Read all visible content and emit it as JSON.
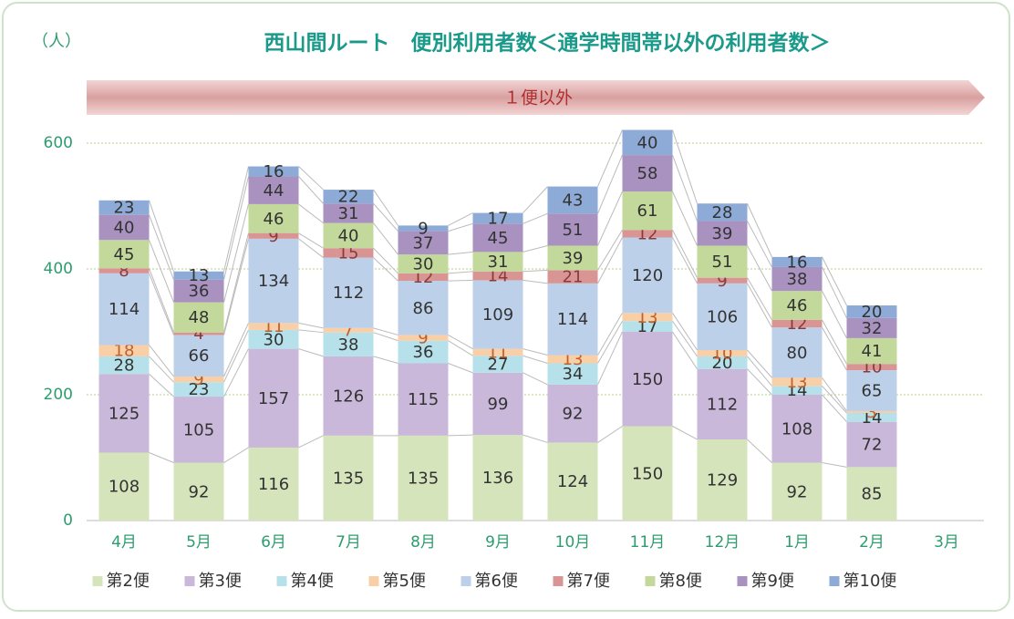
{
  "chart_data": {
    "type": "stacked_bar",
    "title": "西山間ルート　便別利用者数＜通学時間帯以外の利用者数＞",
    "y_label": "（人）",
    "banner": "１便以外",
    "categories": [
      "4月",
      "5月",
      "6月",
      "7月",
      "8月",
      "9月",
      "10月",
      "11月",
      "12月",
      "1月",
      "2月",
      "3月"
    ],
    "series": [
      {
        "name": "第2便",
        "color": "#d6e4bc",
        "values": [
          108,
          92,
          116,
          135,
          135,
          136,
          124,
          150,
          129,
          92,
          85,
          null
        ]
      },
      {
        "name": "第3便",
        "color": "#c9b8d9",
        "values": [
          125,
          105,
          157,
          126,
          115,
          99,
          92,
          150,
          112,
          108,
          72,
          null
        ]
      },
      {
        "name": "第4便",
        "color": "#b7e1ea",
        "values": [
          28,
          23,
          30,
          38,
          36,
          27,
          34,
          17,
          20,
          14,
          14,
          null
        ]
      },
      {
        "name": "第5便",
        "color": "#f9cfa8",
        "values": [
          18,
          9,
          11,
          7,
          9,
          11,
          13,
          13,
          10,
          13,
          3,
          null
        ]
      },
      {
        "name": "第6便",
        "color": "#bcd0ea",
        "values": [
          114,
          66,
          134,
          112,
          86,
          109,
          114,
          120,
          106,
          80,
          65,
          null
        ]
      },
      {
        "name": "第7便",
        "color": "#d99594",
        "values": [
          8,
          4,
          9,
          15,
          12,
          14,
          21,
          12,
          9,
          12,
          10,
          null
        ]
      },
      {
        "name": "第8便",
        "color": "#c3d89b",
        "values": [
          45,
          48,
          46,
          40,
          30,
          31,
          39,
          61,
          51,
          46,
          41,
          null
        ]
      },
      {
        "name": "第9便",
        "color": "#a992c0",
        "values": [
          40,
          36,
          44,
          31,
          37,
          45,
          51,
          58,
          39,
          38,
          32,
          null
        ]
      },
      {
        "name": "第10便",
        "color": "#8eaad6",
        "values": [
          23,
          13,
          16,
          22,
          9,
          17,
          43,
          40,
          28,
          16,
          20,
          null
        ]
      }
    ],
    "ylim": [
      0,
      700
    ],
    "yticks": [
      0,
      200,
      400,
      600
    ],
    "grid": true
  }
}
